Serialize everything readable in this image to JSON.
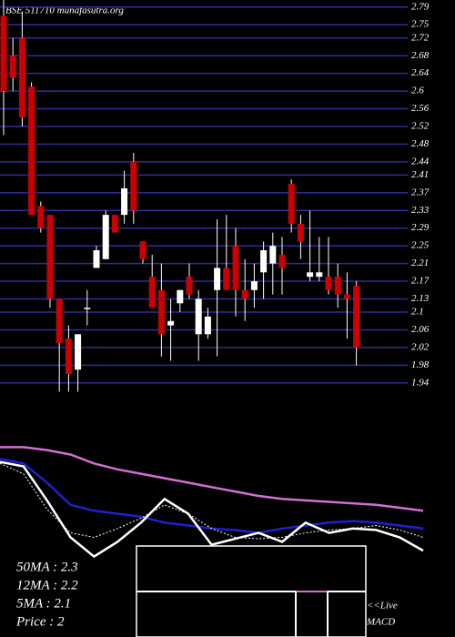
{
  "chart_data": {
    "type": "candlestick",
    "title": "BSE 511710 munafasutra.org",
    "open": [
      2.77,
      2.68,
      2.72,
      2.61,
      2.34,
      2.32,
      2.13,
      2.04,
      1.97,
      2.11,
      2.2,
      2.22,
      2.32,
      2.32,
      2.44,
      2.26,
      2.18,
      2.15,
      2.07,
      2.12,
      2.18,
      2.05,
      2.05,
      2.15,
      2.2,
      2.25,
      2.15,
      2.15,
      2.19,
      2.21,
      2.23,
      2.39,
      2.3,
      2.18,
      2.18,
      2.18,
      2.18,
      2.14,
      2.16
    ],
    "high": [
      2.81,
      2.72,
      2.78,
      2.62,
      2.35,
      2.32,
      2.13,
      2.07,
      2.05,
      2.15,
      2.25,
      2.33,
      2.32,
      2.42,
      2.46,
      2.26,
      2.23,
      2.21,
      2.13,
      2.15,
      2.21,
      2.15,
      2.11,
      2.31,
      2.32,
      2.29,
      2.22,
      2.21,
      2.26,
      2.28,
      2.27,
      2.4,
      2.32,
      2.33,
      2.27,
      2.27,
      2.21,
      2.19,
      2.17
    ],
    "low": [
      2.5,
      2.6,
      2.52,
      2.32,
      2.28,
      2.11,
      1.92,
      1.92,
      1.92,
      2.07,
      2.2,
      2.22,
      2.28,
      2.3,
      2.3,
      2.21,
      2.11,
      2.0,
      1.99,
      2.1,
      2.13,
      1.99,
      2.04,
      2.0,
      2.15,
      2.09,
      2.08,
      2.11,
      2.13,
      2.14,
      2.14,
      2.28,
      2.22,
      2.17,
      2.17,
      2.14,
      2.11,
      2.04,
      1.98
    ],
    "close": [
      2.6,
      2.63,
      2.54,
      2.32,
      2.29,
      2.13,
      2.03,
      1.96,
      2.05,
      2.11,
      2.24,
      2.32,
      2.28,
      2.38,
      2.33,
      2.22,
      2.11,
      2.05,
      2.08,
      2.15,
      2.14,
      2.13,
      2.09,
      2.2,
      2.15,
      2.15,
      2.13,
      2.17,
      2.24,
      2.25,
      2.2,
      2.3,
      2.26,
      2.19,
      2.19,
      2.15,
      2.14,
      2.13,
      2.02
    ],
    "up_color": "#ffffff",
    "down_color": "#cc0000",
    "ylim": [
      1.921,
      2.806
    ],
    "yticks": [
      2.79,
      2.75,
      2.72,
      2.68,
      2.64,
      2.6,
      2.56,
      2.52,
      2.48,
      2.44,
      2.41,
      2.37,
      2.33,
      2.29,
      2.25,
      2.21,
      2.17,
      2.13,
      2.1,
      2.06,
      2.02,
      1.98,
      1.94
    ],
    "grid": true,
    "grid_color": "#2e2e9a",
    "indicators": {
      "ylim": [
        1.7,
        2.5
      ],
      "series": [
        {
          "color": "#d070d0",
          "values": [
            2.43,
            2.43,
            2.41,
            2.38,
            2.32,
            2.28,
            2.25,
            2.22,
            2.19,
            2.16,
            2.13,
            2.1,
            2.08,
            2.07,
            2.06,
            2.05,
            2.04,
            2.02,
            2.0
          ]
        },
        {
          "color": "#2020d0",
          "values": [
            2.35,
            2.32,
            2.19,
            2.04,
            2.0,
            1.98,
            1.96,
            1.92,
            1.9,
            1.88,
            1.87,
            1.85,
            1.88,
            1.9,
            1.92,
            1.93,
            1.92,
            1.9,
            1.88
          ]
        },
        {
          "color": "#ffffff",
          "values": [
            2.33,
            2.3,
            2.07,
            1.82,
            1.69,
            1.79,
            1.92,
            2.08,
            1.98,
            1.77,
            1.81,
            1.85,
            1.79,
            1.92,
            1.85,
            1.88,
            1.87,
            1.82,
            1.73
          ]
        },
        {
          "color": "#ffffff",
          "dashed": true,
          "values": [
            2.32,
            2.25,
            2.01,
            1.85,
            1.82,
            1.88,
            1.95,
            2.04,
            1.98,
            1.88,
            1.82,
            1.81,
            1.82,
            1.85,
            1.87,
            1.88,
            1.9,
            1.87,
            1.82
          ]
        }
      ]
    },
    "annotations": [
      "50MA : 2.3",
      "12MA : 2.2",
      "5MA : 2.1",
      "Price  : 2"
    ],
    "macd_label": [
      "<<Live",
      "MACD"
    ]
  }
}
